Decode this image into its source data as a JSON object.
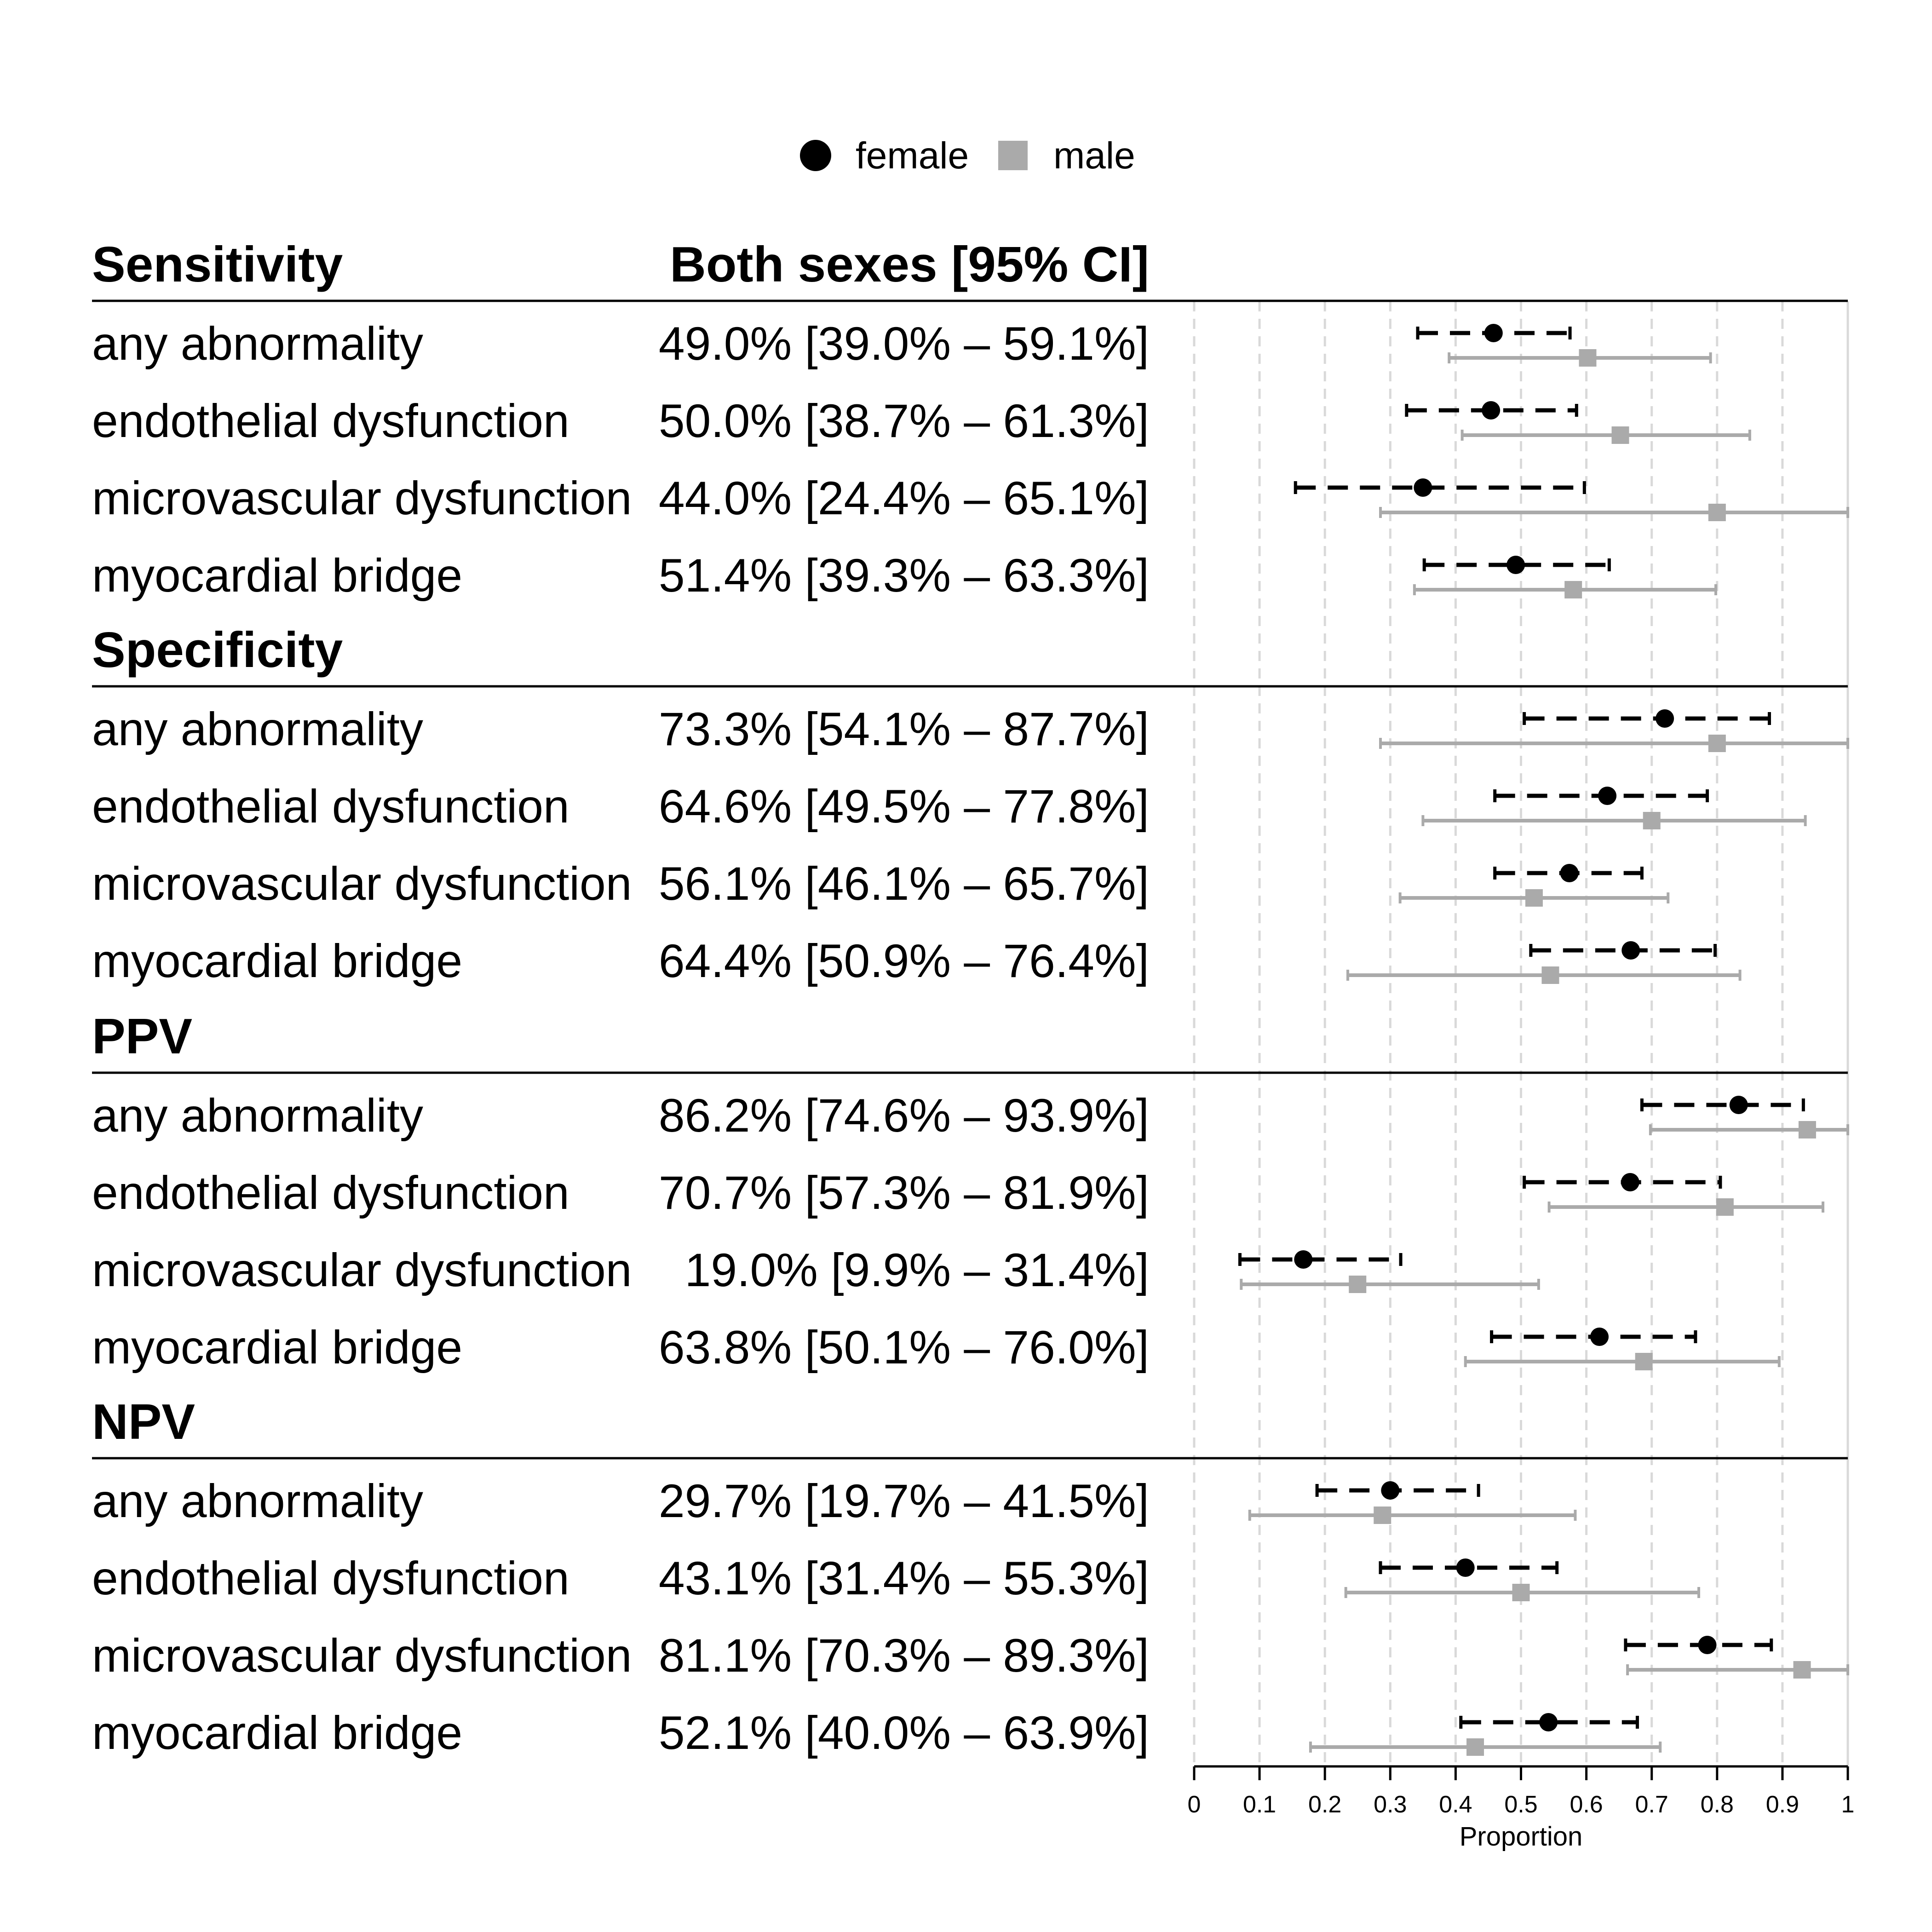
{
  "legend": {
    "female_label": "female",
    "male_label": "male"
  },
  "header": {
    "first_section": "Sensitivity",
    "ci_column": "Both sexes [95% CI]"
  },
  "colors": {
    "female": "#000000",
    "male": "#aaaaaa",
    "grid": "#d9d9d9",
    "rule": "#000000"
  },
  "chart_data": {
    "type": "forest",
    "xlabel": "Proportion",
    "xlim": [
      0,
      1
    ],
    "xticks": [
      "0",
      "0.1",
      "0.2",
      "0.3",
      "0.4",
      "0.5",
      "0.6",
      "0.7",
      "0.8",
      "0.9",
      "1"
    ],
    "grid": "vertical dashed",
    "legend_position": "top-center",
    "series": [
      {
        "name": "female",
        "marker": "circle",
        "line": "dashed"
      },
      {
        "name": "male",
        "marker": "square",
        "line": "solid"
      }
    ],
    "sections": [
      {
        "title": "Sensitivity",
        "rows": [
          {
            "label": "any abnormality",
            "both": "49.0% [39.0% – 59.1%]",
            "female": [
              0.458,
              0.342,
              0.575
            ],
            "male": [
              0.602,
              0.39,
              0.79
            ]
          },
          {
            "label": "endothelial dysfunction",
            "both": "50.0% [38.7% – 61.3%]",
            "female": [
              0.454,
              0.325,
              0.585
            ],
            "male": [
              0.652,
              0.41,
              0.85
            ]
          },
          {
            "label": "microvascular dysfunction",
            "both": "44.0% [24.4% – 65.1%]",
            "female": [
              0.35,
              0.155,
              0.597
            ],
            "male": [
              0.8,
              0.285,
              1.0
            ]
          },
          {
            "label": "myocardial bridge",
            "both": "51.4% [39.3% – 63.3%]",
            "female": [
              0.492,
              0.352,
              0.635
            ],
            "male": [
              0.58,
              0.337,
              0.798
            ]
          }
        ]
      },
      {
        "title": "Specificity",
        "rows": [
          {
            "label": "any abnormality",
            "both": "73.3% [54.1% – 87.7%]",
            "female": [
              0.72,
              0.505,
              0.88
            ],
            "male": [
              0.8,
              0.285,
              1.0
            ]
          },
          {
            "label": "endothelial dysfunction",
            "both": "64.6% [49.5% – 77.8%]",
            "female": [
              0.632,
              0.46,
              0.785
            ],
            "male": [
              0.7,
              0.35,
              0.935
            ]
          },
          {
            "label": "microvascular dysfunction",
            "both": "56.1% [46.1% – 65.7%]",
            "female": [
              0.574,
              0.46,
              0.685
            ],
            "male": [
              0.52,
              0.315,
              0.725
            ]
          },
          {
            "label": "myocardial bridge",
            "both": "64.4% [50.9% – 76.4%]",
            "female": [
              0.668,
              0.515,
              0.797
            ],
            "male": [
              0.545,
              0.235,
              0.835
            ]
          }
        ]
      },
      {
        "title": "PPV",
        "rows": [
          {
            "label": "any abnormality",
            "both": "86.2% [74.6% – 93.9%]",
            "female": [
              0.833,
              0.685,
              0.932
            ],
            "male": [
              0.938,
              0.698,
              1.0
            ]
          },
          {
            "label": "endothelial dysfunction",
            "both": "70.7% [57.3% – 81.9%]",
            "female": [
              0.667,
              0.505,
              0.805
            ],
            "male": [
              0.812,
              0.543,
              0.962
            ]
          },
          {
            "label": "microvascular dysfunction",
            "both": "19.0% [9.9% – 31.4%]",
            "female": [
              0.167,
              0.07,
              0.316
            ],
            "male": [
              0.25,
              0.072,
              0.527
            ]
          },
          {
            "label": "myocardial bridge",
            "both": "63.8% [50.1% – 76.0%]",
            "female": [
              0.62,
              0.455,
              0.767
            ],
            "male": [
              0.688,
              0.415,
              0.895
            ]
          }
        ]
      },
      {
        "title": "NPV",
        "rows": [
          {
            "label": "any abnormality",
            "both": "29.7% [19.7% – 41.5%]",
            "female": [
              0.3,
              0.188,
              0.435
            ],
            "male": [
              0.288,
              0.085,
              0.583
            ]
          },
          {
            "label": "endothelial dysfunction",
            "both": "43.1% [31.4% – 55.3%]",
            "female": [
              0.415,
              0.285,
              0.555
            ],
            "male": [
              0.5,
              0.232,
              0.772
            ]
          },
          {
            "label": "microvascular dysfunction",
            "both": "81.1% [70.3% – 89.3%]",
            "female": [
              0.785,
              0.66,
              0.883
            ],
            "male": [
              0.93,
              0.663,
              1.0
            ]
          },
          {
            "label": "myocardial bridge",
            "both": "52.1% [40.0% – 63.9%]",
            "female": [
              0.542,
              0.408,
              0.678
            ],
            "male": [
              0.43,
              0.178,
              0.713
            ]
          }
        ]
      }
    ]
  }
}
